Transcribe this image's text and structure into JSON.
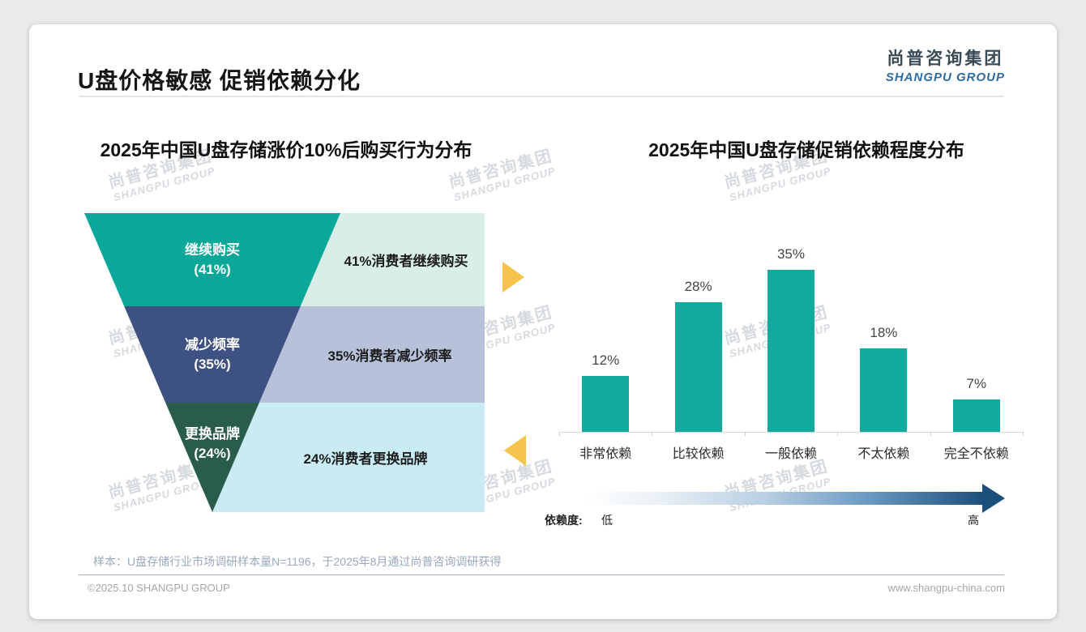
{
  "page": {
    "title": "U盘价格敏感 促销依赖分化",
    "logo": {
      "cn": "尚普咨询集团",
      "en": "SHANGPU GROUP"
    },
    "watermark": {
      "line1": "尚普咨询集团",
      "line2": "SHANGPU GROUP"
    },
    "footnote": "样本：U盘存储行业市场调研样本量N=1196，于2025年8月通过尚普咨询调研获得",
    "copyright": "©2025.10 SHANGPU GROUP",
    "website": "www.shangpu-china.com",
    "colors": {
      "funnel_teal": "#0ba89a",
      "funnel_navy": "#3d5182",
      "funnel_green": "#295c4b",
      "panel_teal": "#d9eee9",
      "panel_blue": "#b7c1d9",
      "panel_cyan": "#c9ebf3",
      "bar_teal": "#12a9a0",
      "accent_yellow": "#f6c34d",
      "gradient_navy": "#1d4f7d"
    }
  },
  "chart_data": [
    {
      "type": "funnel",
      "title": "2025年中国U盘存储涨价10%后购买行为分布",
      "categories": [
        "继续购买",
        "减少频率",
        "更换品牌"
      ],
      "values": [
        41,
        35,
        24
      ],
      "unit": "%",
      "segments": [
        {
          "label": "继续购买",
          "value_label": "(41%)",
          "annotation": "41%消费者继续购买",
          "color": "#0ba89a",
          "panel_color": "#d9eee9"
        },
        {
          "label": "减少频率",
          "value_label": "(35%)",
          "annotation": "35%消费者减少频率",
          "color": "#3d5182",
          "panel_color": "#b7c1d9"
        },
        {
          "label": "更换品牌",
          "value_label": "(24%)",
          "annotation": "24%消费者更换品牌",
          "color": "#295c4b",
          "panel_color": "#c9ebf3"
        }
      ]
    },
    {
      "type": "bar",
      "title": "2025年中国U盘存储促销依赖程度分布",
      "categories": [
        "非常依赖",
        "比较依赖",
        "一般依赖",
        "不太依赖",
        "完全不依赖"
      ],
      "values": [
        12,
        28,
        35,
        18,
        7
      ],
      "value_labels": [
        "12%",
        "28%",
        "35%",
        "18%",
        "7%"
      ],
      "bar_color": "#12a9a0",
      "ylim": [
        0,
        40
      ],
      "grid": false,
      "legend": false,
      "dependency_scale": {
        "label": "依赖度:",
        "low": "低",
        "high": "高"
      }
    }
  ]
}
